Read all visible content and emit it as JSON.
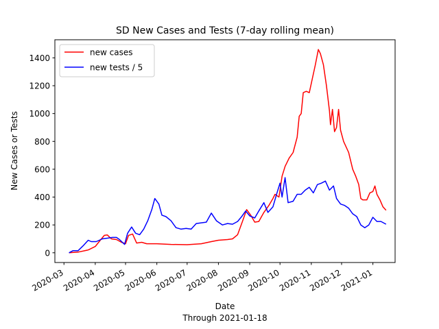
{
  "chart_data": {
    "type": "line",
    "title": "SD New Cases and Tests (7-day rolling mean)",
    "xlabel": "Date",
    "xlabel_note": "Through 2021-01-18",
    "ylabel": "New Cases or Tests",
    "x_range": [
      "2020-02-21",
      "2021-01-23"
    ],
    "ylim": [
      -70,
      1530
    ],
    "x_ticks": [
      "2020-03",
      "2020-04",
      "2020-05",
      "2020-06",
      "2020-07",
      "2020-08",
      "2020-09",
      "2020-10",
      "2020-11",
      "2020-12",
      "2021-01"
    ],
    "y_ticks": [
      0,
      200,
      400,
      600,
      800,
      1000,
      1200,
      1400
    ],
    "grid": false,
    "legend_position": "upper-left",
    "series": [
      {
        "name": "new cases",
        "color": "#ff0000",
        "points": [
          [
            "2020-03-06",
            0
          ],
          [
            "2020-03-15",
            5
          ],
          [
            "2020-03-25",
            20
          ],
          [
            "2020-04-01",
            45
          ],
          [
            "2020-04-06",
            90
          ],
          [
            "2020-04-10",
            125
          ],
          [
            "2020-04-13",
            128
          ],
          [
            "2020-04-17",
            100
          ],
          [
            "2020-04-22",
            95
          ],
          [
            "2020-04-27",
            75
          ],
          [
            "2020-05-01",
            65
          ],
          [
            "2020-05-04",
            125
          ],
          [
            "2020-05-08",
            135
          ],
          [
            "2020-05-12",
            70
          ],
          [
            "2020-05-17",
            75
          ],
          [
            "2020-05-22",
            65
          ],
          [
            "2020-06-01",
            65
          ],
          [
            "2020-06-15",
            60
          ],
          [
            "2020-07-01",
            58
          ],
          [
            "2020-07-15",
            65
          ],
          [
            "2020-07-25",
            80
          ],
          [
            "2020-08-01",
            90
          ],
          [
            "2020-08-10",
            95
          ],
          [
            "2020-08-15",
            100
          ],
          [
            "2020-08-20",
            130
          ],
          [
            "2020-08-25",
            230
          ],
          [
            "2020-08-29",
            310
          ],
          [
            "2020-09-02",
            270
          ],
          [
            "2020-09-06",
            220
          ],
          [
            "2020-09-10",
            225
          ],
          [
            "2020-09-15",
            290
          ],
          [
            "2020-09-20",
            340
          ],
          [
            "2020-09-24",
            390
          ],
          [
            "2020-09-26",
            420
          ],
          [
            "2020-09-30",
            400
          ],
          [
            "2020-10-03",
            550
          ],
          [
            "2020-10-06",
            620
          ],
          [
            "2020-10-10",
            680
          ],
          [
            "2020-10-14",
            720
          ],
          [
            "2020-10-18",
            830
          ],
          [
            "2020-10-20",
            980
          ],
          [
            "2020-10-22",
            1000
          ],
          [
            "2020-10-24",
            1150
          ],
          [
            "2020-10-27",
            1160
          ],
          [
            "2020-10-30",
            1150
          ],
          [
            "2020-11-02",
            1250
          ],
          [
            "2020-11-05",
            1350
          ],
          [
            "2020-11-08",
            1460
          ],
          [
            "2020-11-10",
            1430
          ],
          [
            "2020-11-13",
            1350
          ],
          [
            "2020-11-16",
            1200
          ],
          [
            "2020-11-19",
            1020
          ],
          [
            "2020-11-20",
            920
          ],
          [
            "2020-11-22",
            1030
          ],
          [
            "2020-11-24",
            870
          ],
          [
            "2020-11-26",
            900
          ],
          [
            "2020-11-28",
            1030
          ],
          [
            "2020-11-30",
            880
          ],
          [
            "2020-12-03",
            800
          ],
          [
            "2020-12-08",
            720
          ],
          [
            "2020-12-12",
            600
          ],
          [
            "2020-12-15",
            550
          ],
          [
            "2020-12-18",
            490
          ],
          [
            "2020-12-20",
            390
          ],
          [
            "2020-12-22",
            380
          ],
          [
            "2020-12-26",
            380
          ],
          [
            "2020-12-29",
            430
          ],
          [
            "2021-01-01",
            440
          ],
          [
            "2021-01-03",
            480
          ],
          [
            "2021-01-05",
            420
          ],
          [
            "2021-01-08",
            380
          ],
          [
            "2021-01-11",
            330
          ],
          [
            "2021-01-14",
            305
          ]
        ]
      },
      {
        "name": "new tests / 5",
        "color": "#0000ff",
        "points": [
          [
            "2020-03-06",
            0
          ],
          [
            "2020-03-10",
            15
          ],
          [
            "2020-03-15",
            15
          ],
          [
            "2020-03-20",
            50
          ],
          [
            "2020-03-25",
            90
          ],
          [
            "2020-03-28",
            80
          ],
          [
            "2020-04-02",
            80
          ],
          [
            "2020-04-08",
            100
          ],
          [
            "2020-04-13",
            105
          ],
          [
            "2020-04-18",
            110
          ],
          [
            "2020-04-22",
            110
          ],
          [
            "2020-04-25",
            95
          ],
          [
            "2020-04-30",
            60
          ],
          [
            "2020-05-03",
            140
          ],
          [
            "2020-05-07",
            185
          ],
          [
            "2020-05-11",
            140
          ],
          [
            "2020-05-15",
            130
          ],
          [
            "2020-05-19",
            170
          ],
          [
            "2020-05-23",
            230
          ],
          [
            "2020-05-27",
            310
          ],
          [
            "2020-05-30",
            390
          ],
          [
            "2020-06-03",
            350
          ],
          [
            "2020-06-06",
            270
          ],
          [
            "2020-06-10",
            260
          ],
          [
            "2020-06-15",
            230
          ],
          [
            "2020-06-20",
            180
          ],
          [
            "2020-06-25",
            170
          ],
          [
            "2020-06-30",
            175
          ],
          [
            "2020-07-05",
            170
          ],
          [
            "2020-07-10",
            210
          ],
          [
            "2020-07-15",
            215
          ],
          [
            "2020-07-20",
            220
          ],
          [
            "2020-07-25",
            285
          ],
          [
            "2020-07-30",
            230
          ],
          [
            "2020-08-05",
            200
          ],
          [
            "2020-08-10",
            210
          ],
          [
            "2020-08-15",
            205
          ],
          [
            "2020-08-20",
            225
          ],
          [
            "2020-08-24",
            260
          ],
          [
            "2020-08-28",
            300
          ],
          [
            "2020-09-01",
            265
          ],
          [
            "2020-09-06",
            250
          ],
          [
            "2020-09-10",
            300
          ],
          [
            "2020-09-15",
            360
          ],
          [
            "2020-09-19",
            290
          ],
          [
            "2020-09-24",
            330
          ],
          [
            "2020-09-28",
            430
          ],
          [
            "2020-10-01",
            500
          ],
          [
            "2020-10-03",
            400
          ],
          [
            "2020-10-06",
            540
          ],
          [
            "2020-10-09",
            360
          ],
          [
            "2020-10-14",
            370
          ],
          [
            "2020-10-18",
            420
          ],
          [
            "2020-10-22",
            420
          ],
          [
            "2020-10-26",
            450
          ],
          [
            "2020-10-30",
            470
          ],
          [
            "2020-11-03",
            430
          ],
          [
            "2020-11-07",
            490
          ],
          [
            "2020-11-11",
            500
          ],
          [
            "2020-11-15",
            515
          ],
          [
            "2020-11-19",
            450
          ],
          [
            "2020-11-23",
            480
          ],
          [
            "2020-11-26",
            390
          ],
          [
            "2020-11-30",
            350
          ],
          [
            "2020-12-04",
            340
          ],
          [
            "2020-12-08",
            320
          ],
          [
            "2020-12-12",
            280
          ],
          [
            "2020-12-16",
            260
          ],
          [
            "2020-12-20",
            200
          ],
          [
            "2020-12-24",
            180
          ],
          [
            "2020-12-28",
            200
          ],
          [
            "2021-01-01",
            255
          ],
          [
            "2021-01-05",
            225
          ],
          [
            "2021-01-09",
            225
          ],
          [
            "2021-01-14",
            205
          ]
        ]
      }
    ]
  }
}
